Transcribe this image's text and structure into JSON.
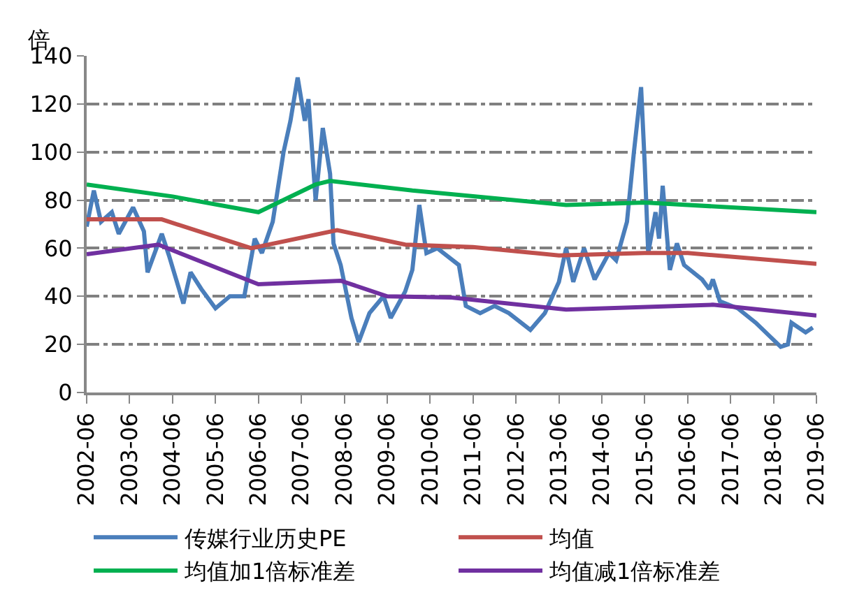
{
  "chart_data": {
    "type": "line",
    "ylabel": "倍",
    "xlim": [
      "2002-06",
      "2019-06"
    ],
    "xticks": [
      "2002-06",
      "2003-06",
      "2004-06",
      "2005-06",
      "2006-06",
      "2007-06",
      "2008-06",
      "2009-06",
      "2010-06",
      "2011-06",
      "2012-06",
      "2013-06",
      "2014-06",
      "2015-06",
      "2016-06",
      "2017-06",
      "2018-06",
      "2019-06"
    ],
    "ylim": [
      0,
      140
    ],
    "yticks": [
      0,
      20,
      40,
      60,
      80,
      100,
      120,
      140
    ],
    "grid": "y",
    "legend": "bottom",
    "line_style": "solid",
    "marker": "none",
    "series": [
      {
        "name": "传媒行业历史PE",
        "color": "#4a7ebb",
        "x": [
          "2002-06",
          "2002-08",
          "2002-10",
          "2003-01",
          "2003-03",
          "2003-07",
          "2003-10",
          "2003-11",
          "2004-03",
          "2004-05",
          "2004-09",
          "2004-11",
          "2005-02",
          "2005-06",
          "2005-10",
          "2006-02",
          "2006-05",
          "2006-07",
          "2006-10",
          "2007-01",
          "2007-03",
          "2007-05",
          "2007-07",
          "2007-08",
          "2007-10",
          "2007-12",
          "2008-02",
          "2008-03",
          "2008-05",
          "2008-08",
          "2008-10",
          "2009-01",
          "2009-05",
          "2009-07",
          "2009-11",
          "2010-01",
          "2010-03",
          "2010-05",
          "2010-08",
          "2011-02",
          "2011-04",
          "2011-08",
          "2011-12",
          "2012-04",
          "2012-10",
          "2013-02",
          "2013-06",
          "2013-08",
          "2013-10",
          "2014-01",
          "2014-04",
          "2014-08",
          "2014-10",
          "2015-01",
          "2015-03",
          "2015-05",
          "2015-06",
          "2015-07",
          "2015-09",
          "2015-10",
          "2015-11",
          "2016-01",
          "2016-03",
          "2016-05",
          "2016-10",
          "2016-12",
          "2017-01",
          "2017-03",
          "2017-08",
          "2018-01",
          "2018-08",
          "2018-10",
          "2018-11",
          "2019-03",
          "2019-05"
        ],
        "values": [
          69,
          84,
          71,
          75,
          66,
          77,
          67,
          50,
          66,
          57,
          37,
          50,
          43,
          35,
          40,
          40,
          64,
          58,
          71,
          100,
          113,
          131,
          113,
          122,
          80,
          110,
          91,
          62,
          53,
          31,
          21,
          33,
          40,
          31,
          42,
          51,
          78,
          58,
          60,
          53,
          36,
          33,
          36,
          33,
          26,
          33,
          46,
          60,
          46,
          60,
          47,
          58,
          55,
          71,
          100,
          127,
          95,
          58,
          75,
          64,
          86,
          51,
          62,
          53,
          47,
          43,
          47,
          38,
          35,
          29,
          19,
          20,
          29,
          25,
          27
        ]
      },
      {
        "name": "均值",
        "color": "#c0504d",
        "x": [
          "2002-06",
          "2004-03",
          "2006-04",
          "2008-04",
          "2009-11",
          "2011-06",
          "2013-06",
          "2015-06",
          "2016-06",
          "2019-06"
        ],
        "values": [
          72,
          72,
          60,
          67.5,
          61.5,
          60.5,
          57,
          58,
          58,
          53.5
        ]
      },
      {
        "name": "均值加1倍标准差",
        "color": "#00b050",
        "x": [
          "2002-06",
          "2004-06",
          "2006-06",
          "2007-10",
          "2008-02",
          "2010-01",
          "2013-08",
          "2015-06",
          "2019-06"
        ],
        "values": [
          86.5,
          81.5,
          75,
          86.5,
          88,
          84,
          78,
          79,
          75
        ]
      },
      {
        "name": "均值减1倍标准差",
        "color": "#7030a0",
        "x": [
          "2002-06",
          "2004-02",
          "2006-06",
          "2008-05",
          "2009-06",
          "2010-12",
          "2013-08",
          "2017-01",
          "2019-06"
        ],
        "values": [
          57.5,
          61.5,
          45,
          46.5,
          40,
          39.5,
          34.5,
          36.5,
          32
        ]
      }
    ]
  }
}
